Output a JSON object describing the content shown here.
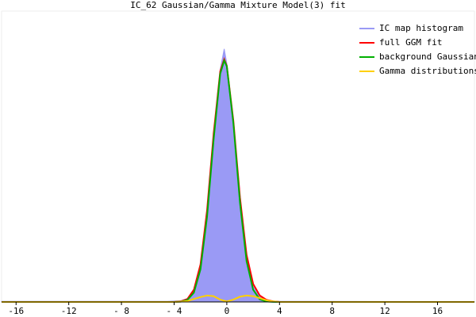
{
  "chart_data": {
    "type": "line",
    "title": "IC_62 Gaussian/Gamma Mixture Model(3) fit",
    "x": [
      -17.1,
      -6,
      -5.5,
      -5,
      -4.5,
      -4,
      -3.5,
      -3,
      -2.5,
      -2,
      -1.5,
      -1,
      -0.5,
      -0.2,
      0,
      0.5,
      1,
      1.5,
      2,
      2.5,
      3,
      3.5,
      4,
      4.5,
      5,
      5.5,
      6,
      18.8
    ],
    "series": [
      {
        "name": "IC map histogram",
        "color": "#9a9af5",
        "fill": true,
        "values": [
          0.002,
          0.002,
          0.002,
          0.002,
          0.002,
          0.003,
          0.004,
          0.012,
          0.045,
          0.13,
          0.32,
          0.58,
          0.8,
          0.87,
          0.82,
          0.62,
          0.36,
          0.16,
          0.06,
          0.022,
          0.008,
          0.003,
          0.002,
          0.002,
          0.002,
          0.002,
          0.002,
          0.001
        ]
      },
      {
        "name": "full GGM fit",
        "color": "#ff0000",
        "values": [
          0,
          0,
          0,
          0,
          0,
          0.0001,
          0.002,
          0.0096,
          0.042,
          0.129,
          0.315,
          0.579,
          0.793,
          0.834,
          0.812,
          0.622,
          0.359,
          0.162,
          0.062,
          0.022,
          0.0075,
          0.0022,
          0,
          0,
          0,
          0,
          0,
          0
        ]
      },
      {
        "name": "background Gaussian",
        "color": "#00b000",
        "values": [
          0,
          0,
          0,
          0,
          0,
          0.0001,
          0.001,
          0.0066,
          0.032,
          0.112,
          0.293,
          0.559,
          0.785,
          0.83,
          0.81,
          0.614,
          0.341,
          0.14,
          0.042,
          0.009,
          0.0015,
          0.0002,
          0,
          0,
          0,
          0,
          0,
          0
        ]
      },
      {
        "name": "Gamma distributions",
        "color": "#ffd000",
        "values": [
          0,
          0,
          0,
          0,
          0,
          0,
          0.001,
          0.003,
          0.01,
          0.017,
          0.022,
          0.02,
          0.008,
          0.004,
          0.002,
          0.008,
          0.018,
          0.022,
          0.02,
          0.013,
          0.006,
          0.002,
          0,
          0,
          0,
          0,
          0,
          0
        ]
      }
    ],
    "xlim": [
      -17.1,
      18.8
    ],
    "xticks": [
      -16,
      -12,
      {
        "value": -8,
        "label": "- 8"
      },
      {
        "value": -4,
        "label": "- 4"
      },
      0,
      4,
      8,
      12,
      16
    ],
    "ylim": [
      0,
      1
    ],
    "legend": "top-right"
  }
}
